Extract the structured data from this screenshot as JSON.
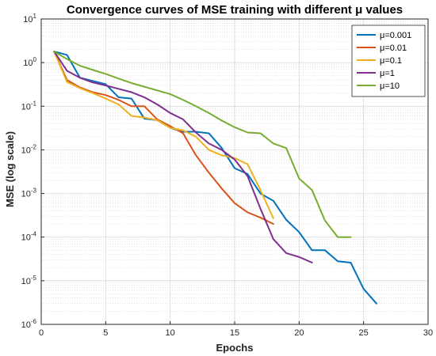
{
  "chart_data": {
    "type": "line",
    "title": "Convergence curves of MSE training with different μ values",
    "xlabel": "Epochs",
    "ylabel": "MSE (log scale)",
    "xlim": [
      0,
      30
    ],
    "ylim": [
      1e-06,
      10
    ],
    "yscale": "log",
    "grid": true,
    "minor_grid": true,
    "legend_position": "top-right",
    "x_ticks": [
      0,
      5,
      10,
      15,
      20,
      25,
      30
    ],
    "y_tick_exponents": [
      -6,
      -5,
      -4,
      -3,
      -2,
      -1,
      0,
      1
    ],
    "y_tick_base": "10",
    "series": [
      {
        "name": "μ=0.001",
        "color": "#0072BD",
        "x": [
          1,
          2,
          3,
          4,
          5,
          6,
          7,
          8,
          9,
          10,
          11,
          12,
          13,
          14,
          15,
          16,
          17,
          18,
          19,
          20,
          21,
          22,
          23,
          24,
          25,
          26
        ],
        "y": [
          1.8,
          1.5,
          0.45,
          0.38,
          0.32,
          0.16,
          0.15,
          0.052,
          0.048,
          0.032,
          0.026,
          0.026,
          0.024,
          0.011,
          0.0038,
          0.0028,
          0.001,
          0.00068,
          0.00025,
          0.00013,
          5e-05,
          5e-05,
          2.8e-05,
          2.6e-05,
          6.5e-06,
          3e-06
        ]
      },
      {
        "name": "μ=0.01",
        "color": "#D95319",
        "x": [
          1,
          2,
          3,
          4,
          5,
          6,
          7,
          8,
          9,
          10,
          11,
          12,
          13,
          14,
          15,
          16,
          17,
          18
        ],
        "y": [
          1.8,
          0.4,
          0.27,
          0.21,
          0.18,
          0.14,
          0.1,
          0.1,
          0.05,
          0.035,
          0.024,
          0.0075,
          0.003,
          0.0013,
          0.0006,
          0.00037,
          0.00028,
          0.0002
        ]
      },
      {
        "name": "μ=0.1",
        "color": "#EDB120",
        "x": [
          1,
          2,
          3,
          4,
          5,
          6,
          7,
          8,
          9,
          10,
          11,
          12,
          13,
          14,
          15,
          16,
          17,
          18
        ],
        "y": [
          1.8,
          0.36,
          0.26,
          0.2,
          0.15,
          0.11,
          0.06,
          0.055,
          0.048,
          0.032,
          0.028,
          0.02,
          0.01,
          0.0075,
          0.0065,
          0.0047,
          0.0012,
          0.00027
        ]
      },
      {
        "name": "μ=1",
        "color": "#7E2F8E",
        "x": [
          1,
          2,
          3,
          4,
          5,
          6,
          7,
          8,
          9,
          10,
          11,
          12,
          13,
          14,
          15,
          16,
          17,
          18,
          19,
          20,
          21
        ],
        "y": [
          1.8,
          0.65,
          0.45,
          0.35,
          0.3,
          0.25,
          0.21,
          0.16,
          0.11,
          0.07,
          0.05,
          0.025,
          0.014,
          0.01,
          0.006,
          0.0025,
          0.00045,
          9e-05,
          4.3e-05,
          3.5e-05,
          2.6e-05
        ]
      },
      {
        "name": "μ=10",
        "color": "#77AC30",
        "x": [
          1,
          2,
          3,
          4,
          5,
          6,
          7,
          8,
          9,
          10,
          11,
          12,
          13,
          14,
          15,
          16,
          17,
          18,
          19,
          20,
          21,
          22,
          23,
          24
        ],
        "y": [
          1.8,
          1.2,
          0.85,
          0.68,
          0.55,
          0.43,
          0.34,
          0.28,
          0.23,
          0.19,
          0.14,
          0.1,
          0.07,
          0.047,
          0.033,
          0.025,
          0.024,
          0.014,
          0.011,
          0.0022,
          0.0012,
          0.00024,
          0.0001,
          0.0001
        ]
      }
    ]
  }
}
